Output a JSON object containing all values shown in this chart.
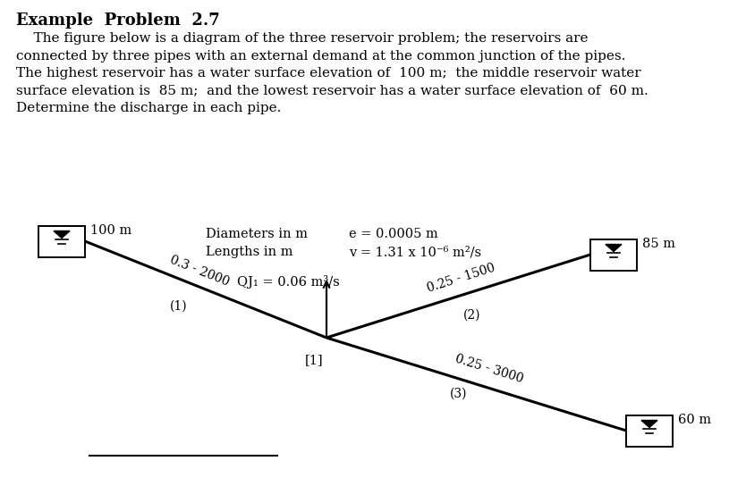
{
  "title": "Example  Problem  2.7",
  "body_lines": [
    "    The figure below is a diagram of the three reservoir problem; the reservoirs are",
    "connected by three pipes with an external demand at the common junction of the pipes.",
    "The highest reservoir has a water surface elevation of  100 m;  the middle reservoir water",
    "surface elevation is  85 m;  and the lowest reservoir has a water surface elevation of  60 m.",
    "Determine the discharge in each pipe."
  ],
  "diameters_label": "Diameters in m",
  "lengths_label": "Lengths in m",
  "e_label": "e = 0.0005 m",
  "v_label": "v = 1.31 x 10⁻⁶ m²/s",
  "res1_elevation": "100 m",
  "res2_elevation": "85 m",
  "res3_elevation": "60 m",
  "pipe1_label": "0.3 - 2000",
  "pipe1_num": "(1)",
  "pipe2_label": "0.25 - 1500",
  "pipe2_num": "(2)",
  "pipe3_label": "0.25 - 3000",
  "pipe3_num": "(3)",
  "junction_label": "[1]",
  "demand_label": "QJ₁ = 0.06 m³/s",
  "background_color": "#ffffff"
}
